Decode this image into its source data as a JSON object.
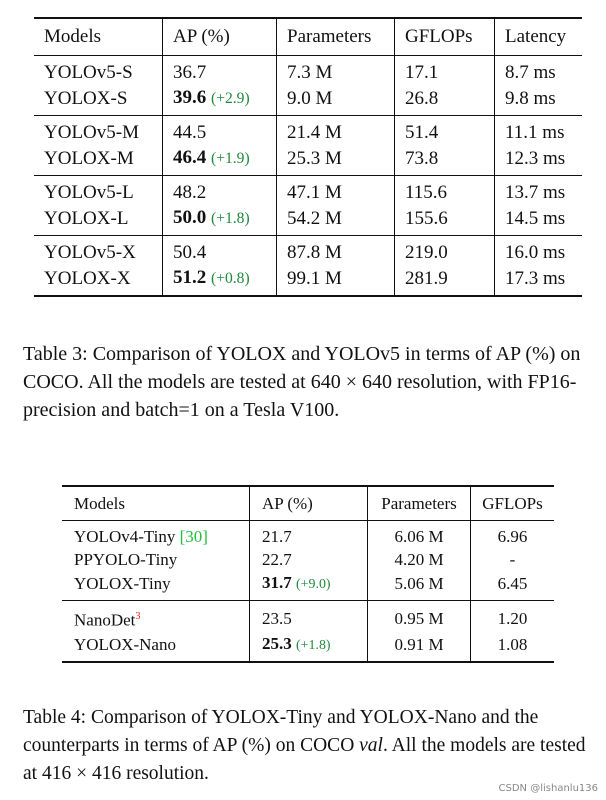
{
  "table3": {
    "headers": [
      "Models",
      "AP (%)",
      "Parameters",
      "GFLOPs",
      "Latency"
    ],
    "groups": [
      [
        {
          "model": "YOLOv5-S",
          "ap": "36.7",
          "gain": "",
          "params": "7.3 M",
          "gflops": "17.1",
          "latency": "8.7 ms"
        },
        {
          "model": "YOLOX-S",
          "ap": "39.6",
          "gain": "(+2.9)",
          "params": "9.0 M",
          "gflops": "26.8",
          "latency": "9.8 ms"
        }
      ],
      [
        {
          "model": "YOLOv5-M",
          "ap": "44.5",
          "gain": "",
          "params": "21.4 M",
          "gflops": "51.4",
          "latency": "11.1 ms"
        },
        {
          "model": "YOLOX-M",
          "ap": "46.4",
          "gain": "(+1.9)",
          "params": "25.3 M",
          "gflops": "73.8",
          "latency": "12.3 ms"
        }
      ],
      [
        {
          "model": "YOLOv5-L",
          "ap": "48.2",
          "gain": "",
          "params": "47.1 M",
          "gflops": "115.6",
          "latency": "13.7 ms"
        },
        {
          "model": "YOLOX-L",
          "ap": "50.0",
          "gain": "(+1.8)",
          "params": "54.2 M",
          "gflops": "155.6",
          "latency": "14.5 ms"
        }
      ],
      [
        {
          "model": "YOLOv5-X",
          "ap": "50.4",
          "gain": "",
          "params": "87.8 M",
          "gflops": "219.0",
          "latency": "16.0 ms"
        },
        {
          "model": "YOLOX-X",
          "ap": "51.2",
          "gain": "(+0.8)",
          "params": "99.1 M",
          "gflops": "281.9",
          "latency": "17.3 ms"
        }
      ]
    ],
    "caption": "Table 3: Comparison of YOLOX and YOLOv5 in terms of AP (%) on COCO. All the models are tested at 640 × 640 resolution, with FP16-precision and batch=1 on a Tesla V100."
  },
  "table4": {
    "headers": [
      "Models",
      "AP (%)",
      "Parameters",
      "GFLOPs"
    ],
    "groups": [
      [
        {
          "model": "YOLOv4-Tiny",
          "cite": "[30]",
          "sup": "",
          "ap": "21.7",
          "gain": "",
          "params": "6.06 M",
          "gflops": "6.96"
        },
        {
          "model": "PPYOLO-Tiny",
          "cite": "",
          "sup": "",
          "ap": "22.7",
          "gain": "",
          "params": "4.20 M",
          "gflops": "-"
        },
        {
          "model": "YOLOX-Tiny",
          "cite": "",
          "sup": "",
          "ap": "31.7",
          "gain": "(+9.0)",
          "params": "5.06 M",
          "gflops": "6.45"
        }
      ],
      [
        {
          "model": "NanoDet",
          "cite": "",
          "sup": "3",
          "ap": "23.5",
          "gain": "",
          "params": "0.95 M",
          "gflops": "1.20"
        },
        {
          "model": "YOLOX-Nano",
          "cite": "",
          "sup": "",
          "ap": "25.3",
          "gain": "(+1.8)",
          "params": "0.91 M",
          "gflops": "1.08"
        }
      ]
    ],
    "caption_pre": "Table 4: Comparison of YOLOX-Tiny and YOLOX-Nano and the counterparts in terms of AP (%) on COCO ",
    "caption_em": "val",
    "caption_post": ". All the models are tested at 416 × 416 resolution."
  },
  "watermark": "CSDN @lishanlu136"
}
